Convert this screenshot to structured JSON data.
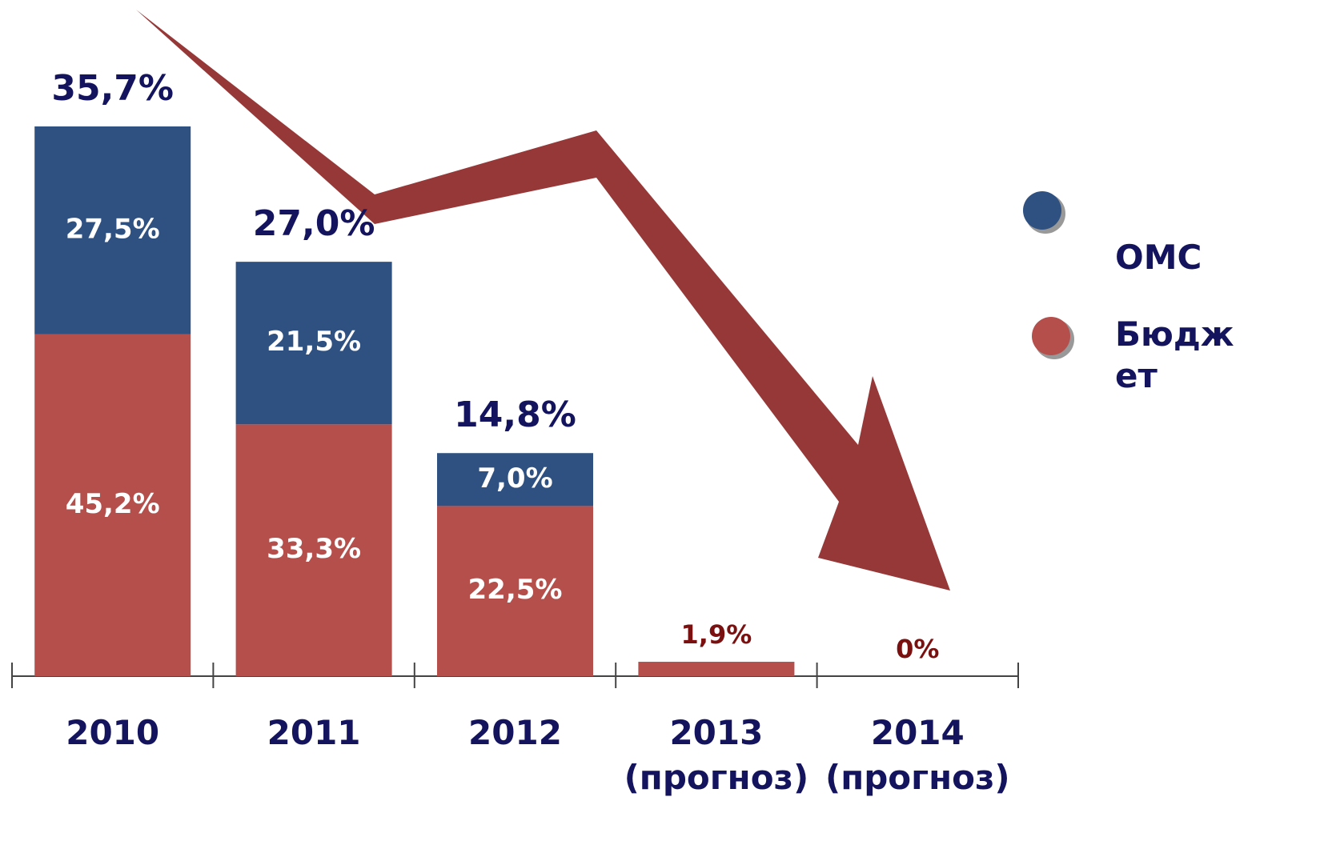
{
  "chart_data": {
    "type": "stacked-bar",
    "categories": [
      "2010",
      "2011",
      "2012",
      "2013 (прогноз)",
      "2014 (прогноз)"
    ],
    "annotations": [
      "35,7%",
      "27,0%",
      "14,8%",
      null,
      null
    ],
    "series": [
      {
        "name": "Бюджет",
        "color": "#b54f4c",
        "values": [
          45.2,
          33.3,
          22.5,
          1.9,
          0
        ],
        "value_labels": [
          "45,2%",
          "33,3%",
          "22,5%",
          "1,9%",
          "0%"
        ]
      },
      {
        "name": "ОМС",
        "color": "#2f5182",
        "values": [
          27.5,
          21.5,
          7.0,
          null,
          null
        ],
        "value_labels": [
          "27,5%",
          "21,5%",
          "7,0%",
          null,
          null
        ]
      }
    ],
    "legend": "right"
  }
}
